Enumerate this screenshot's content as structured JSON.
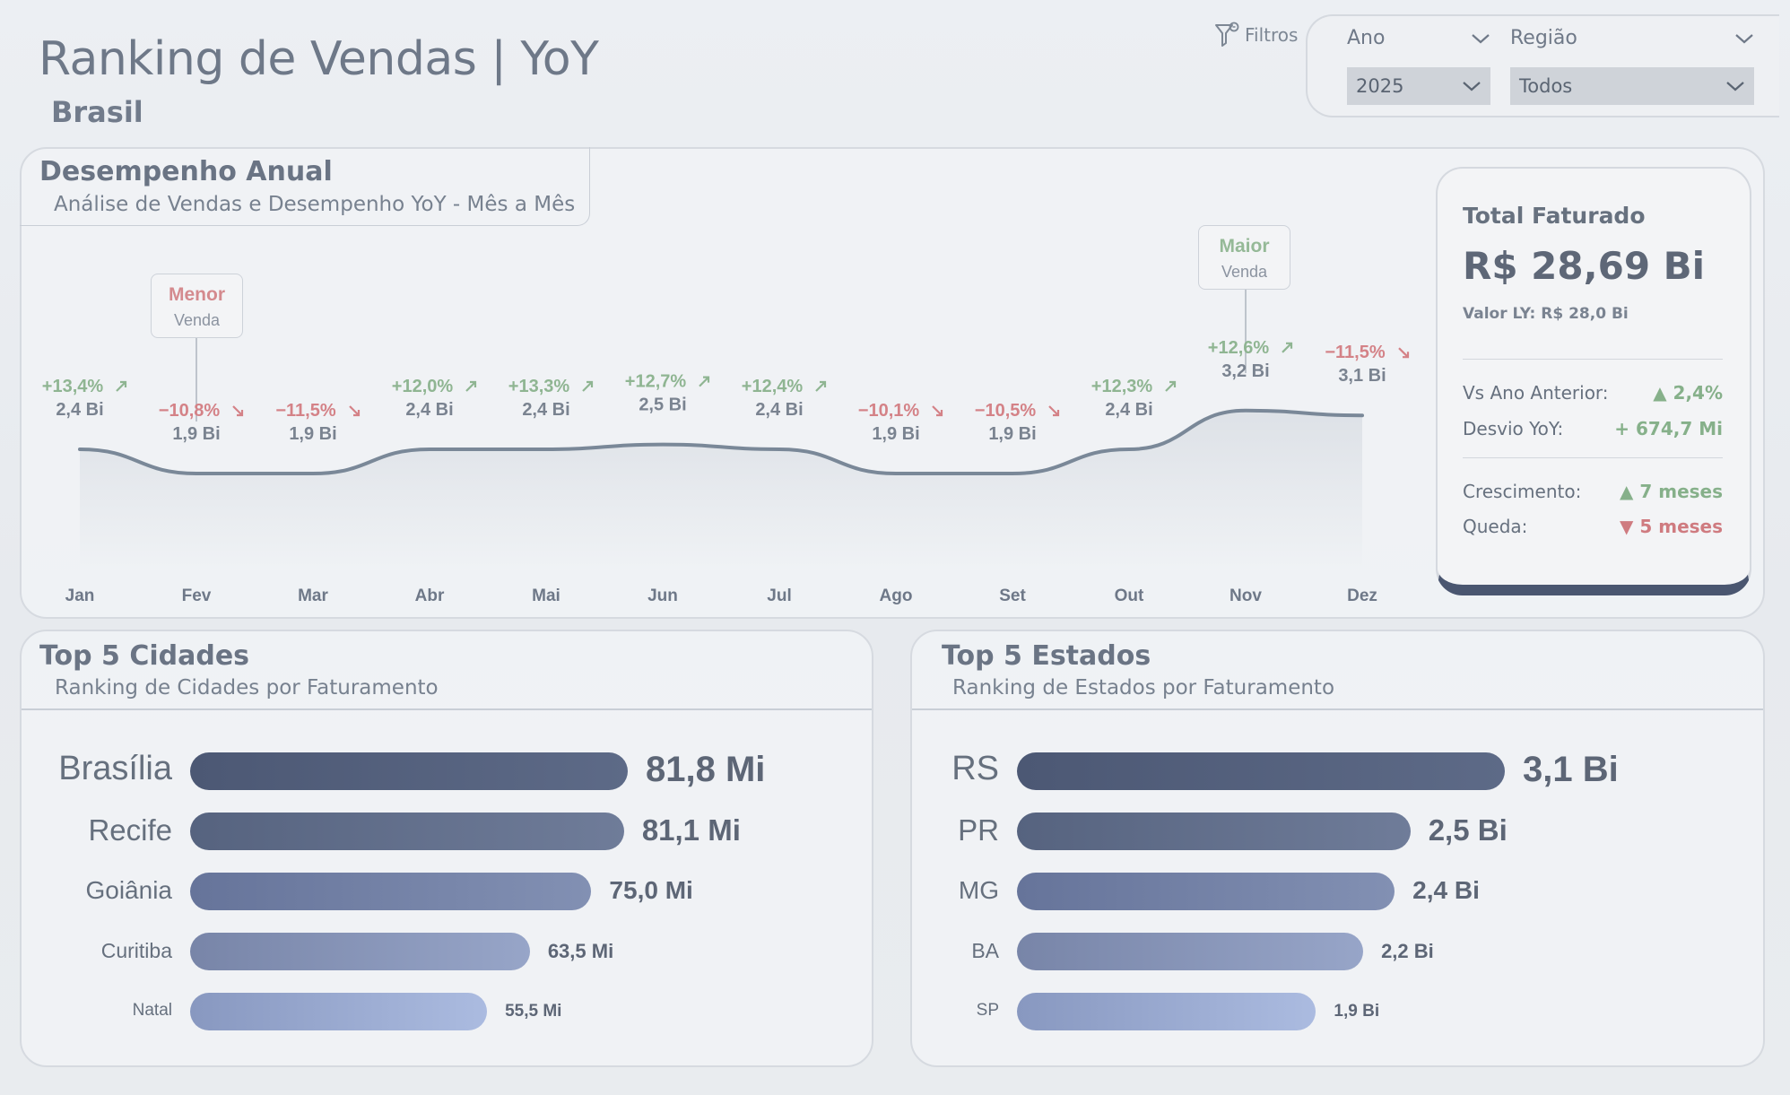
{
  "header": {
    "title": "Ranking de Vendas | YoY",
    "subtitle": "Brasil",
    "filters_label": "Filtros"
  },
  "slicers": {
    "year": {
      "label": "Ano",
      "selected": "2025"
    },
    "region": {
      "label": "Região",
      "selected": "Todos"
    }
  },
  "annual": {
    "title": "Desempenho Anual",
    "subtitle": "Análise de Vendas e Desempenho YoY - Mês a Mês",
    "callout_low": {
      "title": "Menor",
      "sub": "Venda"
    },
    "callout_high": {
      "title": "Maior",
      "sub": "Venda"
    }
  },
  "kpi": {
    "title": "Total Faturado",
    "value": "R$ 28,69 Bi",
    "ly": "Valor LY: R$ 28,0 Bi",
    "vs_label": "Vs Ano Anterior:",
    "vs_value": "▲ 2,4%",
    "desvio_label": "Desvio YoY:",
    "desvio_value": "+ 674,7 Mi",
    "growth_label": "Crescimento:",
    "growth_value": "▲ 7 meses",
    "drop_label": "Queda:",
    "drop_value": "▼ 5 meses",
    "colors": {
      "up": "#86b08a",
      "down": "#cf7b80",
      "accent": "#4a5670"
    }
  },
  "cities": {
    "title": "Top 5 Cidades",
    "subtitle": "Ranking de Cidades por Faturamento",
    "items": [
      {
        "label": "Brasília",
        "value_label": "81,8 Mi"
      },
      {
        "label": "Recife",
        "value_label": "81,1 Mi"
      },
      {
        "label": "Goiânia",
        "value_label": "75,0 Mi"
      },
      {
        "label": "Curitiba",
        "value_label": "63,5 Mi"
      },
      {
        "label": "Natal",
        "value_label": "55,5 Mi"
      }
    ]
  },
  "states": {
    "title": "Top 5 Estados",
    "subtitle": "Ranking de Estados por Faturamento",
    "items": [
      {
        "label": "RS",
        "value_label": "3,1 Bi"
      },
      {
        "label": "PR",
        "value_label": "2,5 Bi"
      },
      {
        "label": "MG",
        "value_label": "2,4 Bi"
      },
      {
        "label": "BA",
        "value_label": "2,2 Bi"
      },
      {
        "label": "SP",
        "value_label": "1,9 Bi"
      }
    ]
  },
  "chart_data": [
    {
      "type": "line",
      "title": "Desempenho Anual",
      "x": [
        "Jan",
        "Fev",
        "Mar",
        "Abr",
        "Mai",
        "Jun",
        "Jul",
        "Ago",
        "Set",
        "Out",
        "Nov",
        "Dez"
      ],
      "series": [
        {
          "values": [
            2.4,
            1.9,
            1.9,
            2.4,
            2.4,
            2.5,
            2.4,
            1.9,
            1.9,
            2.4,
            3.2,
            3.1
          ]
        }
      ],
      "value_labels": [
        "2,4 Bi",
        "1,9 Bi",
        "1,9 Bi",
        "2,4 Bi",
        "2,4 Bi",
        "2,5 Bi",
        "2,4 Bi",
        "1,9 Bi",
        "1,9 Bi",
        "2,4 Bi",
        "3,2 Bi",
        "3,1 Bi"
      ],
      "yoy_labels": [
        "+13,4%",
        "−10,8%",
        "−11,5%",
        "+12,0%",
        "+13,3%",
        "+12,7%",
        "+12,4%",
        "−10,1%",
        "−10,5%",
        "+12,3%",
        "+12,6%",
        "−11,5%"
      ],
      "yoy_direction": [
        "up",
        "down",
        "down",
        "up",
        "up",
        "up",
        "up",
        "down",
        "down",
        "up",
        "up",
        "down"
      ],
      "min_month": "Fev",
      "max_month": "Nov",
      "line_color": "#7a8898"
    },
    {
      "type": "bar",
      "orientation": "horizontal",
      "title": "Top 5 Cidades",
      "categories": [
        "Brasília",
        "Recife",
        "Goiânia",
        "Curitiba",
        "Natal"
      ],
      "values": [
        81.8,
        81.1,
        75.0,
        63.5,
        55.5
      ],
      "unit": "Mi"
    },
    {
      "type": "bar",
      "orientation": "horizontal",
      "title": "Top 5 Estados",
      "categories": [
        "RS",
        "PR",
        "MG",
        "BA",
        "SP"
      ],
      "values": [
        3.1,
        2.5,
        2.4,
        2.2,
        1.9
      ],
      "unit": "Bi"
    }
  ]
}
